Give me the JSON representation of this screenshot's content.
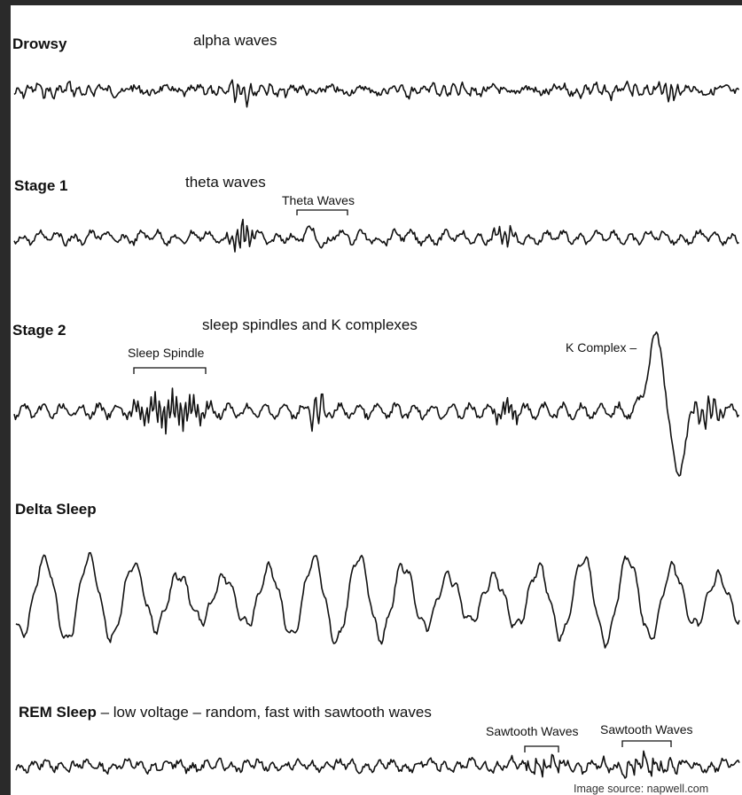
{
  "stages": [
    {
      "id": "drowsy",
      "title": "Drowsy",
      "description": "alpha waves",
      "annotations": []
    },
    {
      "id": "stage1",
      "title": "Stage 1",
      "description": "theta waves",
      "annotations": [
        {
          "label": "Theta Waves"
        }
      ]
    },
    {
      "id": "stage2",
      "title": "Stage 2",
      "description": "sleep spindles and K complexes",
      "annotations": [
        {
          "label": "Sleep Spindle"
        },
        {
          "label": "K Complex –"
        }
      ]
    },
    {
      "id": "delta",
      "title": "Delta Sleep",
      "description": "",
      "annotations": []
    },
    {
      "id": "rem",
      "title": "REM Sleep",
      "description": " – low voltage – random, fast with sawtooth waves",
      "annotations": [
        {
          "label": "Sawtooth Waves"
        },
        {
          "label": "Sawtooth Waves"
        }
      ]
    }
  ],
  "source_credit": "Image source: napwell.com",
  "colors": {
    "frame_border": "#2a2a2a",
    "background": "#ffffff",
    "trace": "#111111"
  }
}
